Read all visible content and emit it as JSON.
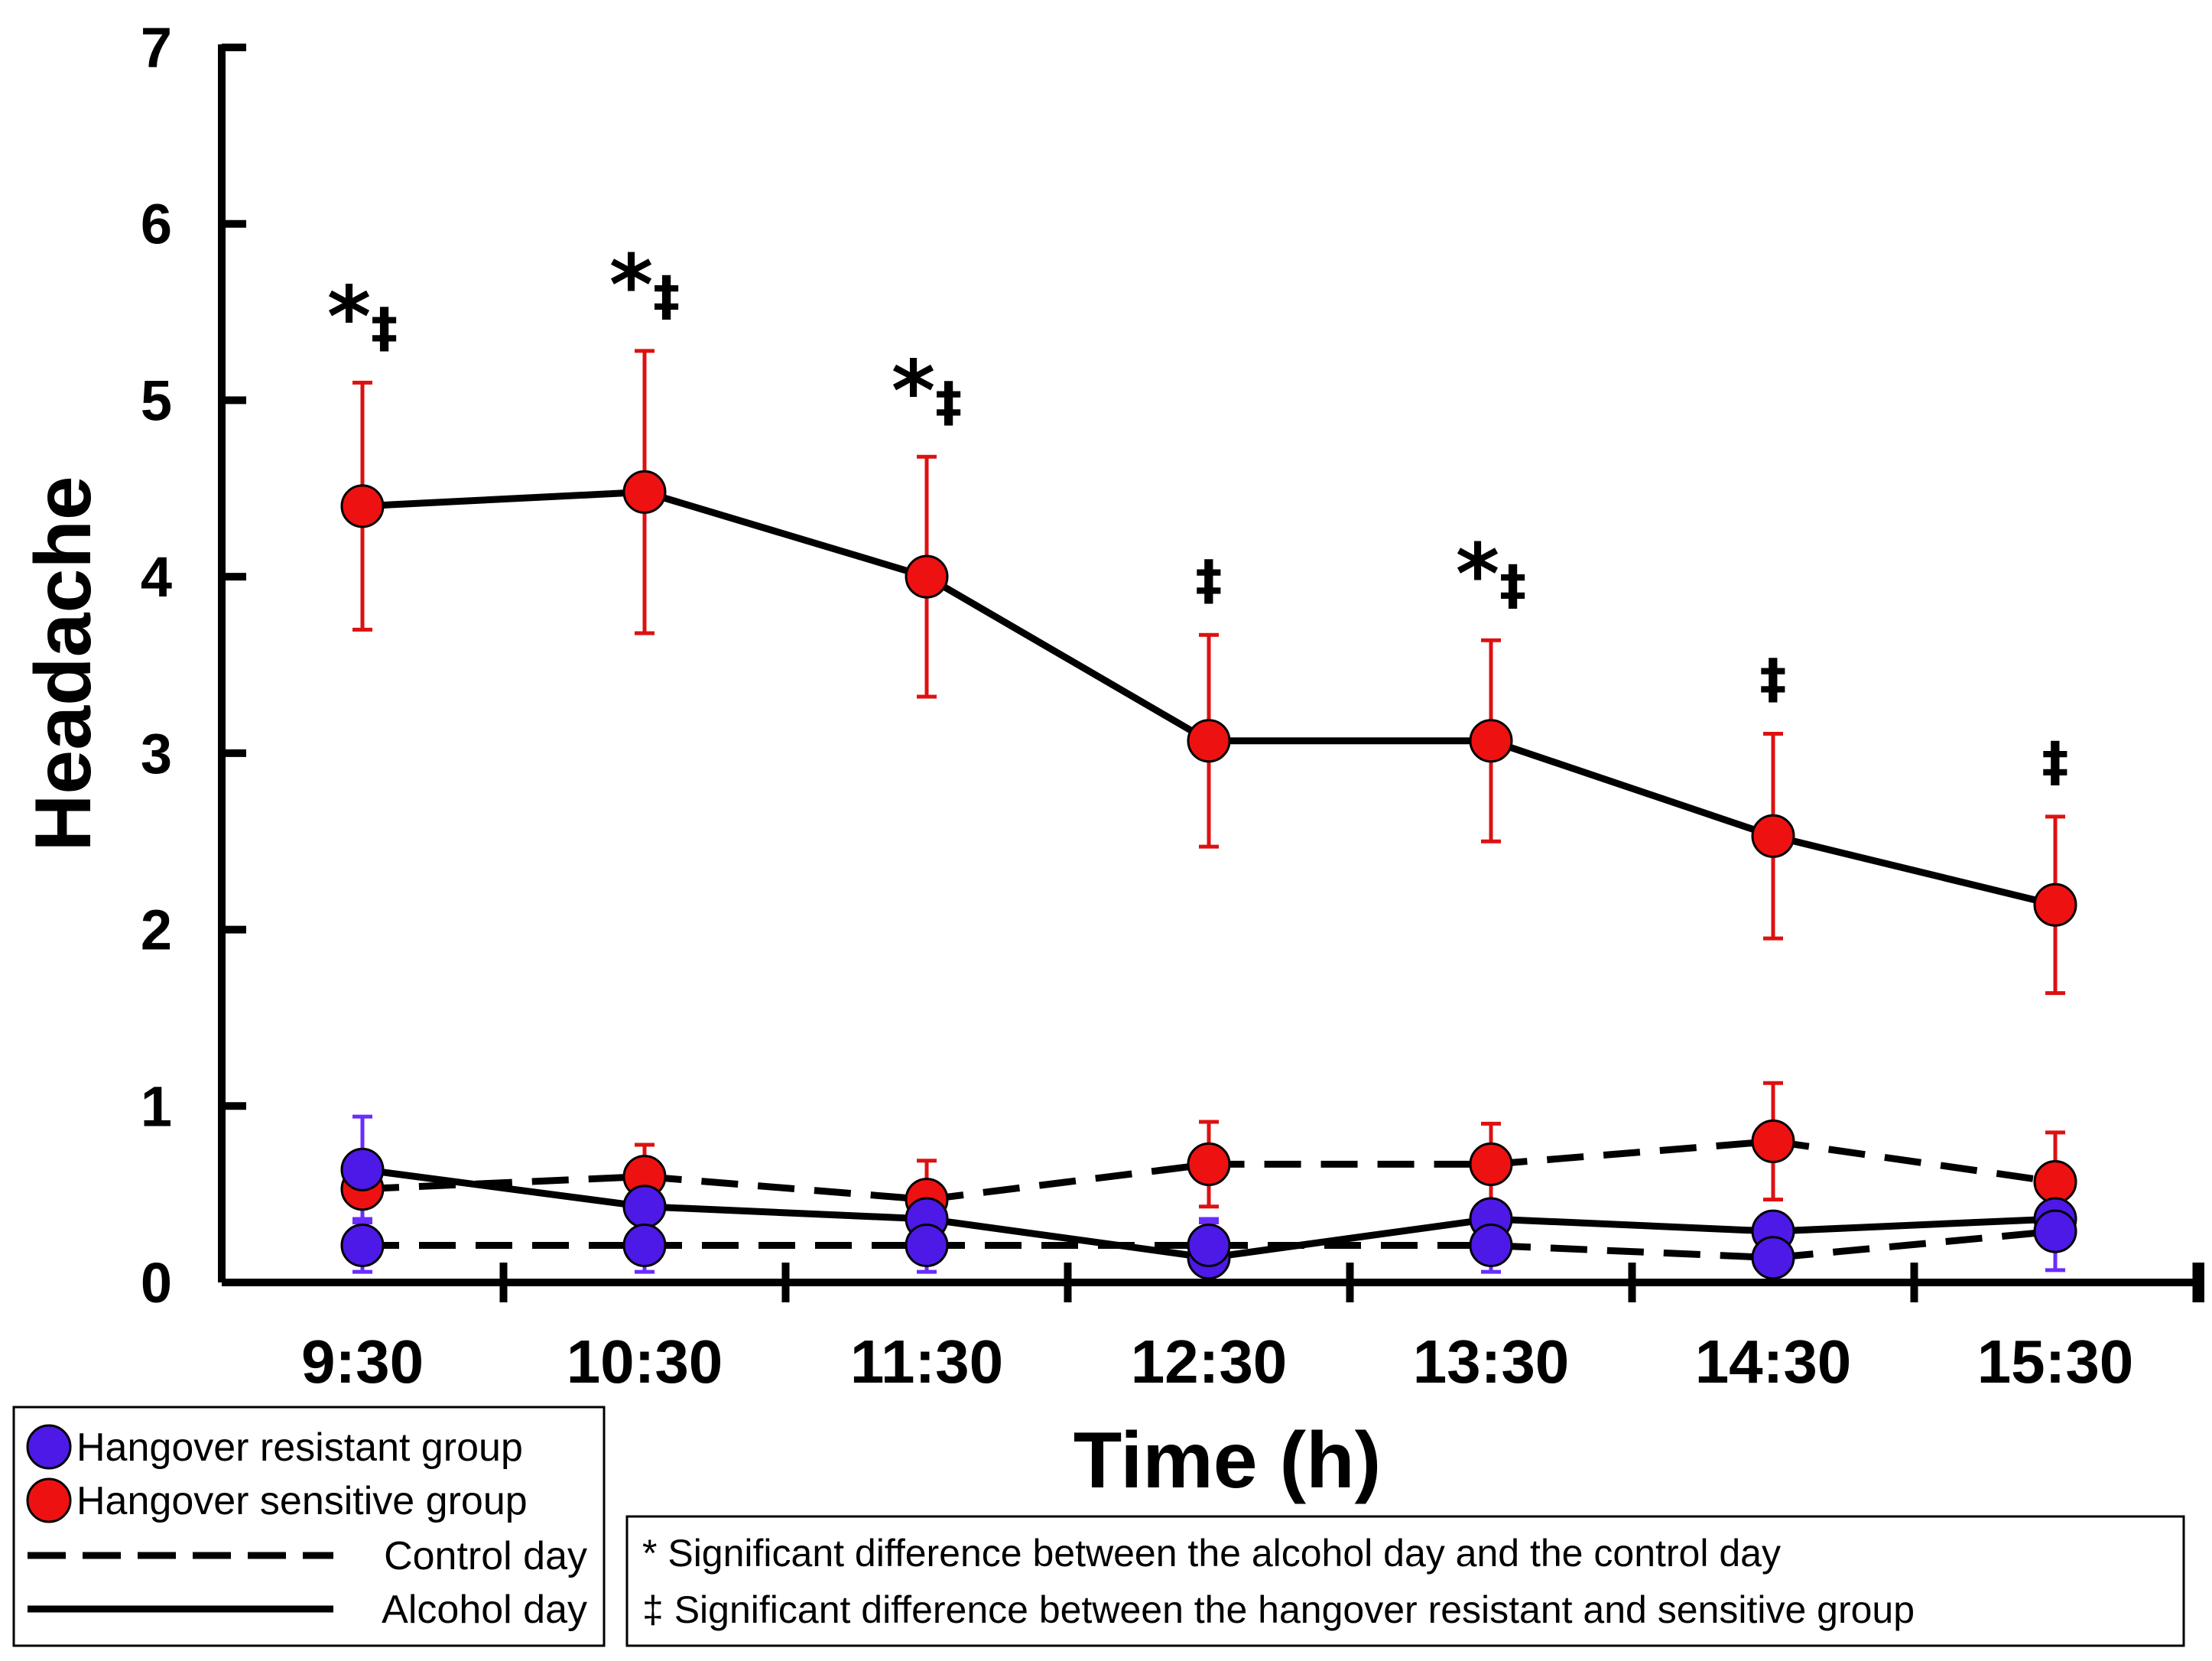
{
  "chart_data": {
    "type": "line",
    "title": "",
    "xlabel": "Time (h)",
    "ylabel": "Headache",
    "ylim": [
      0,
      7
    ],
    "yticks": [
      "0",
      "1",
      "2",
      "3",
      "4",
      "5",
      "6",
      "7"
    ],
    "categories": [
      "9:30",
      "10:30",
      "11:30",
      "12:30",
      "13:30",
      "14:30",
      "15:30"
    ],
    "series": [
      {
        "name": "Hangover sensitive group - Alcohol day",
        "group": "sensitive",
        "day": "alcohol",
        "values": [
          4.4,
          4.48,
          4.0,
          3.07,
          3.07,
          2.53,
          2.14
        ],
        "errors": [
          0.7,
          0.8,
          0.68,
          0.6,
          0.57,
          0.58,
          0.5
        ]
      },
      {
        "name": "Hangover sensitive group - Control day",
        "group": "sensitive",
        "day": "control",
        "values": [
          0.53,
          0.6,
          0.47,
          0.67,
          0.67,
          0.8,
          0.57
        ],
        "errors": [
          0.0,
          0.18,
          0.22,
          0.24,
          0.23,
          0.33,
          0.28
        ]
      },
      {
        "name": "Hangover resistant group - Alcohol day",
        "group": "resistant",
        "day": "alcohol",
        "values": [
          0.64,
          0.43,
          0.36,
          0.14,
          0.36,
          0.29,
          0.36
        ],
        "errors": [
          0.3,
          0.0,
          0.0,
          0.2,
          0.0,
          0.0,
          0.0
        ]
      },
      {
        "name": "Hangover resistant group - Control day",
        "group": "resistant",
        "day": "control",
        "values": [
          0.21,
          0.21,
          0.21,
          0.21,
          0.21,
          0.14,
          0.29
        ],
        "errors": [
          0.15,
          0.15,
          0.15,
          0.15,
          0.15,
          0.0,
          0.22
        ]
      }
    ],
    "significance_marks": [
      "*‡",
      "*‡",
      "*‡",
      "‡",
      "*‡",
      "‡",
      "‡"
    ],
    "legend": {
      "groups": [
        {
          "label": "Hangover resistant group",
          "color": "#4d19e6"
        },
        {
          "label": "Hangover sensitive group",
          "color": "#ee1111"
        }
      ],
      "lines": [
        {
          "label": "Control day",
          "style": "dashed"
        },
        {
          "label": "Alcohol day",
          "style": "solid"
        }
      ],
      "placement": "bottom-left"
    },
    "notes": [
      "* Significant difference between the alcohol day and the control day",
      "‡ Significant difference between the hangover resistant and sensitive group"
    ],
    "colors": {
      "sensitive": "#ee1111",
      "resistant": "#4d19e6",
      "sensitive_error": "#dd1111",
      "resistant_error": "#6a2cff",
      "line": "#000000"
    }
  }
}
